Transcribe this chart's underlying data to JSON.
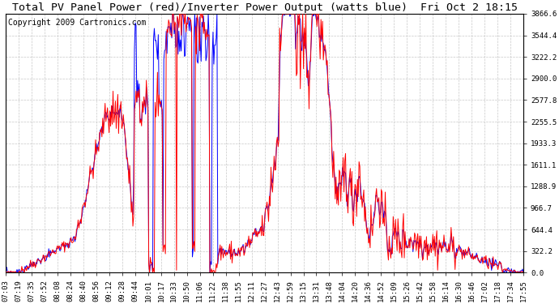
{
  "title": "Total PV Panel Power (red)/Inverter Power Output (watts blue)  Fri Oct 2 18:15",
  "copyright": "Copyright 2009 Cartronics.com",
  "yticks": [
    0.0,
    322.2,
    644.4,
    966.7,
    1288.9,
    1611.1,
    1933.3,
    2255.5,
    2577.8,
    2900.0,
    3222.2,
    3544.4,
    3866.6
  ],
  "ylim": [
    0.0,
    3866.6
  ],
  "xtick_labels": [
    "07:03",
    "07:19",
    "07:35",
    "07:52",
    "08:08",
    "08:24",
    "08:40",
    "08:56",
    "09:12",
    "09:28",
    "09:44",
    "10:01",
    "10:17",
    "10:33",
    "10:50",
    "11:06",
    "11:22",
    "11:38",
    "11:55",
    "12:11",
    "12:27",
    "12:43",
    "12:59",
    "13:15",
    "13:31",
    "13:48",
    "14:04",
    "14:20",
    "14:36",
    "14:52",
    "15:09",
    "15:26",
    "15:42",
    "15:58",
    "16:14",
    "16:30",
    "16:46",
    "17:02",
    "17:18",
    "17:34",
    "17:55"
  ],
  "bg_color": "#ffffff",
  "plot_bg_color": "#ffffff",
  "grid_color": "#c8c8c8",
  "line_color_red": "#ff0000",
  "line_color_blue": "#0000ff",
  "title_color": "#000000",
  "copyright_color": "#000000",
  "title_fontsize": 9.5,
  "copyright_fontsize": 7,
  "tick_fontsize": 6.5,
  "line_width": 0.7
}
